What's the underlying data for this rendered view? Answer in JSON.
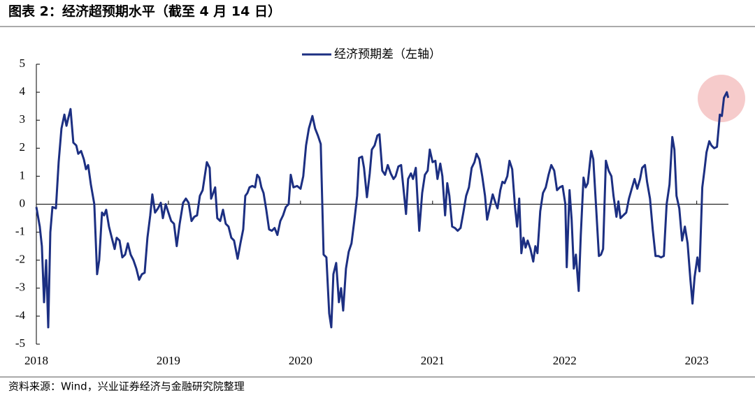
{
  "chart_data": {
    "type": "line",
    "title": "图表 2：经济超预期水平（截至 4 月 14 日）",
    "source": "资料来源：Wind，兴业证券经济与金融研究院整理",
    "xlim": [
      2018,
      2023.24
    ],
    "xticks": [
      2018,
      2019,
      2020,
      2021,
      2022,
      2023
    ],
    "ylim": [
      -5,
      5
    ],
    "yticks": [
      -5,
      -4,
      -3,
      -2,
      -1,
      0,
      1,
      2,
      3,
      4,
      5
    ],
    "legend": "top-center",
    "x": [
      2018,
      2018.026,
      2018.042,
      2018.058,
      2018.074,
      2018.09,
      2018.106,
      2018.122,
      2018.148,
      2018.169,
      2018.19,
      2018.212,
      2018.228,
      2018.243,
      2018.259,
      2018.28,
      2018.302,
      2018.317,
      2018.339,
      2018.36,
      2018.376,
      2018.392,
      2018.413,
      2018.439,
      2018.46,
      2018.476,
      2018.497,
      2018.513,
      2018.529,
      2018.55,
      2018.571,
      2018.593,
      2018.608,
      2018.63,
      2018.651,
      2018.672,
      2018.693,
      2018.714,
      2018.735,
      2018.757,
      2018.778,
      2018.799,
      2018.82,
      2018.841,
      2018.862,
      2018.878,
      2018.899,
      2018.921,
      2018.942,
      2018.958,
      2018.979,
      2019.0,
      2019.021,
      2019.042,
      2019.063,
      2019.085,
      2019.111,
      2019.132,
      2019.153,
      2019.175,
      2019.196,
      2019.217,
      2019.238,
      2019.259,
      2019.291,
      2019.312,
      2019.323,
      2019.339,
      2019.354,
      2019.37,
      2019.392,
      2019.413,
      2019.434,
      2019.455,
      2019.476,
      2019.497,
      2019.524,
      2019.545,
      2019.566,
      2019.582,
      2019.598,
      2019.614,
      2019.635,
      2019.656,
      2019.672,
      2019.688,
      2019.704,
      2019.72,
      2019.741,
      2019.762,
      2019.783,
      2019.804,
      2019.825,
      2019.847,
      2019.868,
      2019.889,
      2019.91,
      2019.926,
      2019.947,
      2019.974,
      2020.0,
      2020.021,
      2020.042,
      2020.063,
      2020.09,
      2020.111,
      2020.132,
      2020.153,
      2020.175,
      2020.196,
      2020.217,
      2020.233,
      2020.249,
      2020.27,
      2020.291,
      2020.307,
      2020.323,
      2020.344,
      2020.365,
      2020.386,
      2020.407,
      2020.429,
      2020.444,
      2020.466,
      2020.481,
      2020.503,
      2020.524,
      2020.54,
      2020.561,
      2020.582,
      2020.598,
      2020.619,
      2020.64,
      2020.661,
      2020.683,
      2020.704,
      2020.72,
      2020.741,
      2020.762,
      2020.783,
      2020.799,
      2020.815,
      2020.836,
      2020.852,
      2020.873,
      2020.899,
      2020.921,
      2020.942,
      2020.963,
      2020.979,
      2021.0,
      2021.021,
      2021.037,
      2021.058,
      2021.074,
      2021.095,
      2021.111,
      2021.127,
      2021.148,
      2021.169,
      2021.19,
      2021.212,
      2021.233,
      2021.254,
      2021.275,
      2021.296,
      2021.317,
      2021.333,
      2021.354,
      2021.376,
      2021.397,
      2021.413,
      2021.434,
      2021.455,
      2021.476,
      2021.492,
      2021.513,
      2021.529,
      2021.545,
      2021.566,
      2021.582,
      2021.603,
      2021.624,
      2021.64,
      2021.656,
      2021.672,
      2021.688,
      2021.704,
      2021.72,
      2021.741,
      2021.762,
      2021.778,
      2021.794,
      2021.815,
      2021.836,
      2021.857,
      2021.878,
      2021.899,
      2021.921,
      2021.942,
      2021.963,
      2021.984,
      2022.005,
      2022.016,
      2022.037,
      2022.053,
      2022.069,
      2022.085,
      2022.106,
      2022.122,
      2022.143,
      2022.159,
      2022.175,
      2022.201,
      2022.217,
      2022.238,
      2022.259,
      2022.275,
      2022.291,
      2022.312,
      2022.333,
      2022.354,
      2022.37,
      2022.392,
      2022.407,
      2022.423,
      2022.444,
      2022.466,
      2022.487,
      2022.508,
      2022.529,
      2022.55,
      2022.571,
      2022.587,
      2022.608,
      2022.624,
      2022.646,
      2022.667,
      2022.688,
      2022.709,
      2022.73,
      2022.751,
      2022.772,
      2022.794,
      2022.815,
      2022.831,
      2022.847,
      2022.868,
      2022.889,
      2022.91,
      2022.931,
      2022.952,
      2022.968,
      2022.984,
      2023.005,
      2023.021,
      2023.042,
      2023.058,
      2023.074,
      2023.095,
      2023.111,
      2023.132,
      2023.153,
      2023.175,
      2023.19,
      2023.206,
      2023.228,
      2023.238
    ],
    "series": [
      {
        "name": "经济预期差（左轴）",
        "color": "#1c2f82",
        "values": [
          -0.1,
          -0.8,
          -1.5,
          -3.5,
          -2.0,
          -4.4,
          -1.0,
          -0.1,
          -0.15,
          1.5,
          2.7,
          3.2,
          2.8,
          3.1,
          3.4,
          2.2,
          2.1,
          1.8,
          1.9,
          1.6,
          1.25,
          1.4,
          0.7,
          0.0,
          -2.5,
          -2.0,
          -0.3,
          -0.4,
          -0.2,
          -0.8,
          -1.2,
          -1.6,
          -1.2,
          -1.3,
          -1.9,
          -1.8,
          -1.4,
          -1.8,
          -2.0,
          -2.3,
          -2.7,
          -2.5,
          -2.45,
          -1.2,
          -0.4,
          0.35,
          -0.3,
          -0.15,
          0.05,
          -0.5,
          0.0,
          -0.3,
          -0.6,
          -0.7,
          -1.5,
          -0.7,
          0.05,
          0.2,
          0.05,
          -0.6,
          -0.45,
          -0.4,
          0.3,
          0.5,
          1.5,
          1.3,
          0.2,
          0.4,
          0.6,
          -0.5,
          -0.6,
          -0.2,
          -0.7,
          -0.8,
          -1.2,
          -1.3,
          -1.95,
          -1.4,
          -0.9,
          0.3,
          0.4,
          0.6,
          0.65,
          0.6,
          1.05,
          0.95,
          0.6,
          0.4,
          -0.2,
          -0.9,
          -0.95,
          -0.85,
          -1.1,
          -0.6,
          -0.4,
          -0.1,
          0.0,
          1.05,
          0.6,
          0.65,
          0.55,
          1.0,
          2.1,
          2.7,
          3.15,
          2.7,
          2.45,
          2.15,
          -1.8,
          -1.9,
          -3.9,
          -4.4,
          -2.5,
          -2.1,
          -3.5,
          -3.0,
          -3.8,
          -2.3,
          -1.7,
          -1.4,
          -0.6,
          0.3,
          1.65,
          1.7,
          1.3,
          0.25,
          1.1,
          1.95,
          2.1,
          2.45,
          2.5,
          1.2,
          1.05,
          1.4,
          1.1,
          0.9,
          1.0,
          1.35,
          1.4,
          0.4,
          -0.35,
          0.9,
          1.1,
          0.9,
          1.3,
          -0.95,
          0.4,
          1.05,
          1.2,
          1.95,
          1.5,
          1.55,
          0.9,
          1.45,
          1.0,
          -0.4,
          0.75,
          0.3,
          -0.8,
          -0.85,
          -0.95,
          -0.85,
          -0.3,
          0.3,
          0.6,
          1.3,
          1.5,
          1.8,
          1.6,
          1.0,
          0.3,
          -0.55,
          -0.1,
          0.35,
          0.05,
          -0.15,
          0.5,
          0.8,
          0.75,
          1.0,
          1.55,
          1.25,
          -0.1,
          -0.8,
          0.2,
          -1.75,
          -1.2,
          -1.55,
          -1.3,
          -1.6,
          -2.05,
          -1.5,
          -1.75,
          -0.25,
          0.4,
          0.6,
          1.05,
          1.4,
          1.2,
          0.5,
          0.6,
          0.65,
          0.0,
          -2.25,
          0.5,
          -0.55,
          -2.3,
          -1.8,
          -3.1,
          -1.1,
          0.95,
          0.6,
          0.75,
          1.9,
          1.6,
          -0.1,
          -1.85,
          -1.8,
          -1.6,
          1.55,
          1.2,
          1.0,
          0.3,
          -0.45,
          0.1,
          -0.5,
          -0.4,
          -0.3,
          0.2,
          0.55,
          0.9,
          0.55,
          0.9,
          1.3,
          1.4,
          0.8,
          0.2,
          -0.9,
          -1.85,
          -1.85,
          -1.9,
          -1.85,
          0.0,
          0.7,
          2.4,
          1.95,
          0.3,
          -0.15,
          -1.3,
          -0.8,
          -1.4,
          -2.7,
          -3.55,
          -2.6,
          -1.9,
          -2.4,
          0.6,
          1.2,
          1.85,
          2.25,
          2.1,
          2.0,
          2.05,
          3.2,
          3.15,
          3.8,
          4.0,
          3.8
        ]
      }
    ]
  }
}
